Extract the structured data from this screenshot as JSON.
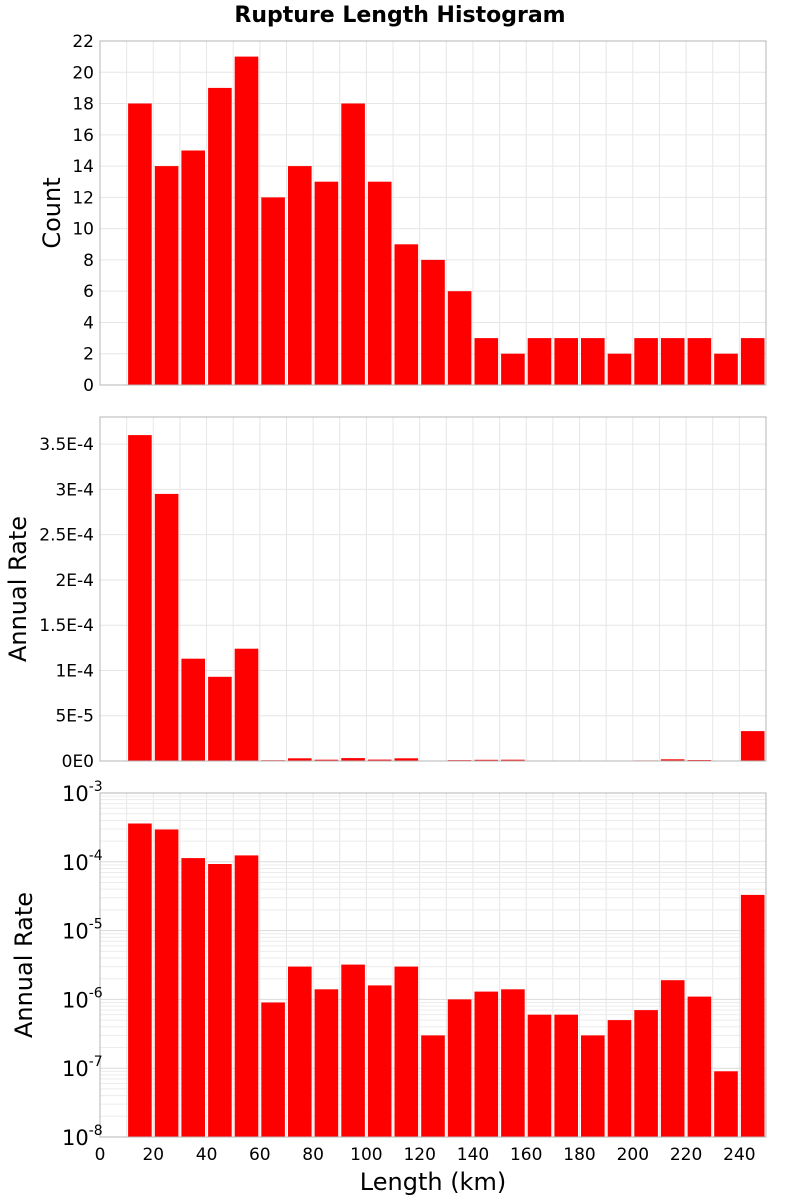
{
  "figure": {
    "title": "Rupture Length Histogram"
  },
  "chart_data": [
    {
      "type": "bar",
      "title": "Rupture Length Histogram",
      "xlabel": "",
      "ylabel": "Count",
      "xlim": [
        0,
        250
      ],
      "ylim": [
        0,
        22
      ],
      "yscale": "linear",
      "grid": true,
      "bar_color": "#ff0000",
      "x": [
        15,
        25,
        35,
        45,
        55,
        65,
        75,
        85,
        95,
        105,
        115,
        125,
        135,
        145,
        155,
        165,
        175,
        185,
        195,
        205,
        215,
        225,
        235,
        245
      ],
      "bin_width": 10,
      "values": [
        18,
        14,
        15,
        19,
        21,
        12,
        14,
        13,
        18,
        13,
        9,
        8,
        6,
        3,
        2,
        3,
        3,
        3,
        2,
        3,
        3,
        3,
        2,
        3
      ],
      "yticks": [
        0,
        2,
        4,
        6,
        8,
        10,
        12,
        14,
        16,
        18,
        20,
        22
      ],
      "ytick_labels": [
        "0",
        "2",
        "4",
        "6",
        "8",
        "10",
        "12",
        "14",
        "16",
        "18",
        "20",
        "22"
      ]
    },
    {
      "type": "bar",
      "xlabel": "",
      "ylabel": "Annual Rate",
      "xlim": [
        0,
        250
      ],
      "ylim": [
        0,
        0.00038
      ],
      "yscale": "linear",
      "grid": true,
      "bar_color": "#ff0000",
      "x": [
        15,
        25,
        35,
        45,
        55,
        65,
        75,
        85,
        95,
        105,
        115,
        125,
        135,
        145,
        155,
        165,
        175,
        185,
        195,
        205,
        215,
        225,
        235,
        245
      ],
      "bin_width": 10,
      "values": [
        0.00036,
        0.000295,
        0.000113,
        9.3e-05,
        0.000124,
        9e-07,
        3e-06,
        1.4e-06,
        3.2e-06,
        1.6e-06,
        3e-06,
        3e-07,
        1e-06,
        1.3e-06,
        1.4e-06,
        6e-07,
        6e-07,
        3e-07,
        5e-07,
        7e-07,
        1.9e-06,
        1.1e-06,
        9e-08,
        3.3e-05
      ],
      "yticks": [
        0,
        5e-05,
        0.0001,
        0.00015,
        0.0002,
        0.00025,
        0.0003,
        0.00035
      ],
      "ytick_labels": [
        "0E0",
        "5E-5",
        "1E-4",
        "1.5E-4",
        "2E-4",
        "2.5E-4",
        "3E-4",
        "3.5E-4"
      ]
    },
    {
      "type": "bar",
      "xlabel": "Length (km)",
      "ylabel": "Annual Rate",
      "xlim": [
        0,
        250
      ],
      "ylim": [
        1e-08,
        0.001
      ],
      "yscale": "log",
      "grid": true,
      "bar_color": "#ff0000",
      "x": [
        15,
        25,
        35,
        45,
        55,
        65,
        75,
        85,
        95,
        105,
        115,
        125,
        135,
        145,
        155,
        165,
        175,
        185,
        195,
        205,
        215,
        225,
        235,
        245
      ],
      "bin_width": 10,
      "values": [
        0.00036,
        0.000295,
        0.000113,
        9.3e-05,
        0.000124,
        9e-07,
        3e-06,
        1.4e-06,
        3.2e-06,
        1.6e-06,
        3e-06,
        3e-07,
        1e-06,
        1.3e-06,
        1.4e-06,
        6e-07,
        6e-07,
        3e-07,
        5e-07,
        7e-07,
        1.9e-06,
        1.1e-06,
        9e-08,
        3.3e-05
      ],
      "ytick_exponents": [
        "-3",
        "-4",
        "-5",
        "-6",
        "-7",
        "-8"
      ],
      "ytick_base": "10",
      "xticks": [
        0,
        20,
        40,
        60,
        80,
        100,
        120,
        140,
        160,
        180,
        200,
        220,
        240
      ],
      "xtick_labels": [
        "0",
        "20",
        "40",
        "60",
        "80",
        "100",
        "120",
        "140",
        "160",
        "180",
        "200",
        "220",
        "240"
      ]
    }
  ]
}
